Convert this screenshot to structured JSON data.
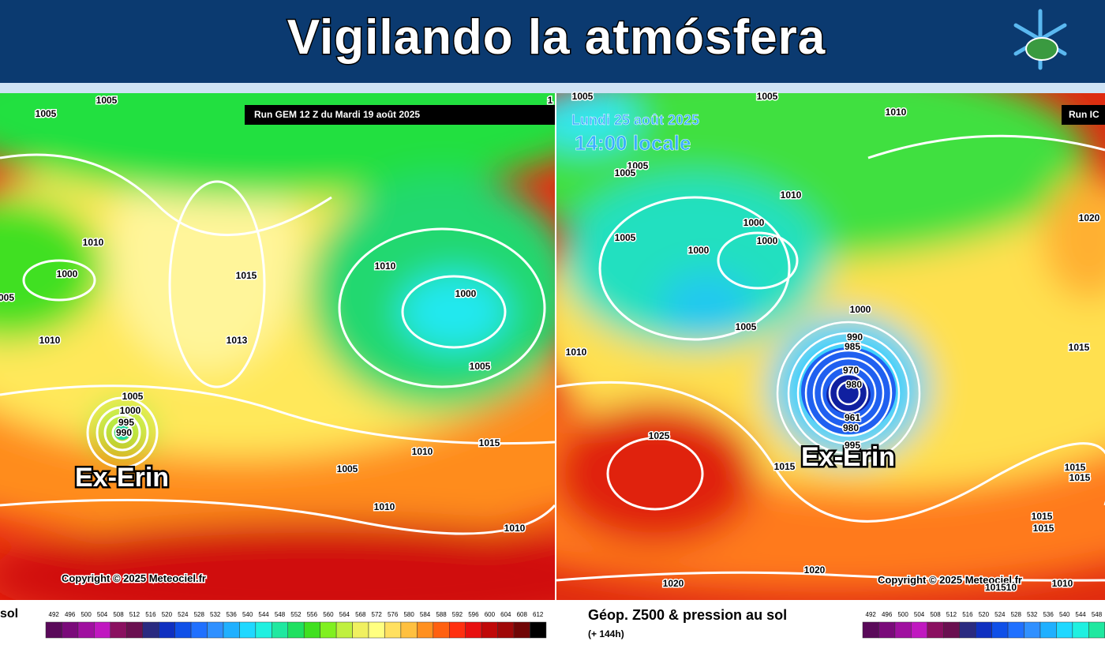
{
  "header": {
    "title": "Vigilando la atmósfera"
  },
  "left_map": {
    "run_label": "Run GEM 12 Z du Mardi 19 août 2025",
    "storm_label": "Ex-Erin",
    "copyright": "Copyright © 2025 Meteociel.fr",
    "isobar_labels": [
      "1005",
      "1005",
      "1010",
      "1000",
      "005",
      "1015",
      "1013",
      "1010",
      "1010",
      "1000",
      "1005",
      "1005",
      "1000",
      "995",
      "990",
      "1015",
      "1010",
      "1005",
      "1010",
      "1010",
      "1"
    ],
    "caption": "sol",
    "scale_labels": [
      492,
      496,
      500,
      504,
      508,
      512,
      516,
      520,
      524,
      528,
      532,
      536,
      540,
      544,
      548,
      552,
      556,
      560,
      564,
      568,
      572,
      576,
      580,
      584,
      588,
      592,
      596,
      600,
      604,
      608,
      612
    ]
  },
  "right_map": {
    "date": "Lundi 25 août 2025",
    "time": "14:00 locale",
    "run_label": "Run IC",
    "storm_label": "Ex-Erin",
    "copyright": "Copyright © 2025 Meteociel.fr",
    "isobar_labels": [
      "1005",
      "1005",
      "1010",
      "1005",
      "1005",
      "1010",
      "1000",
      "1000",
      "1005",
      "1000",
      "1020",
      "1000",
      "1005",
      "1010",
      "990",
      "985",
      "970",
      "980",
      "961",
      "980",
      "995",
      "1025",
      "1015",
      "1015",
      "1015",
      "1015",
      "1015",
      "1015",
      "1020",
      "1020",
      "1010",
      "101510"
    ],
    "caption": "Géop. Z500 & pression au sol",
    "subcaption": "(+ 144h)",
    "scale_labels": [
      492,
      496,
      500,
      504,
      508,
      512,
      516,
      520,
      524,
      528,
      532,
      536,
      540,
      544,
      548
    ]
  }
}
